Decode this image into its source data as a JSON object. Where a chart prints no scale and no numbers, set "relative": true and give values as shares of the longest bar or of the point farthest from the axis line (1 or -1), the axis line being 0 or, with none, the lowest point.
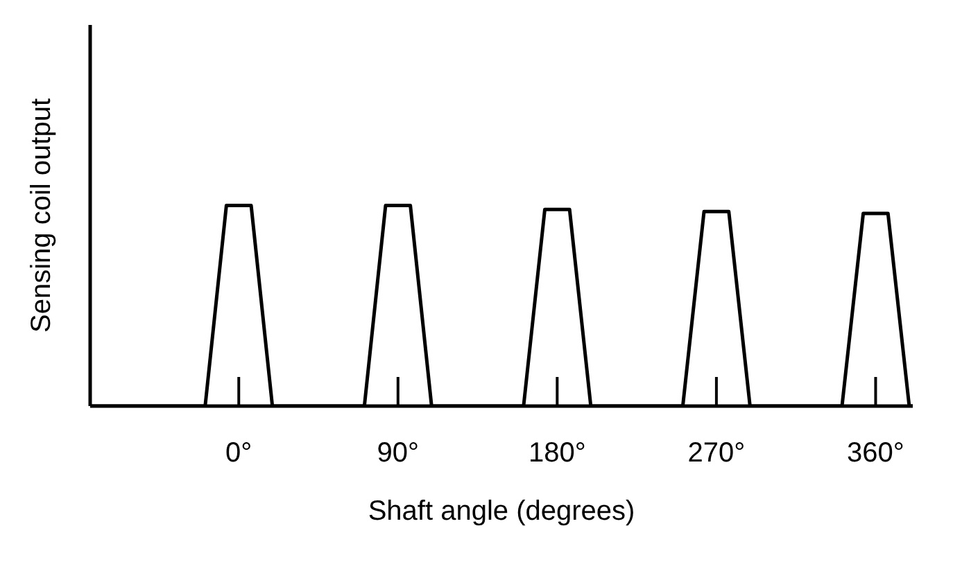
{
  "chart_data": {
    "type": "line",
    "relative": true,
    "xlabel": "Shaft angle (degrees)",
    "ylabel": "Sensing coil output",
    "color": "#000000",
    "marker": "none",
    "line_style": "solid",
    "xlim": [
      -84,
      381
    ],
    "xticks": [
      {
        "value": 0,
        "label": "0°"
      },
      {
        "value": 90,
        "label": "90°"
      },
      {
        "value": 180,
        "label": "180°"
      },
      {
        "value": 270,
        "label": "270°"
      },
      {
        "value": 360,
        "label": "360°"
      }
    ],
    "x": [
      -84,
      -19,
      -7,
      7,
      19,
      71,
      83,
      97,
      109,
      161,
      173,
      187,
      199,
      251,
      263,
      277,
      289,
      341,
      353,
      367,
      379,
      381
    ],
    "values": [
      0,
      0,
      1,
      1,
      0,
      0,
      1,
      1,
      0,
      0,
      0.98,
      0.98,
      0,
      0,
      0.97,
      0.97,
      0,
      0,
      0.96,
      0.96,
      0,
      0
    ]
  }
}
